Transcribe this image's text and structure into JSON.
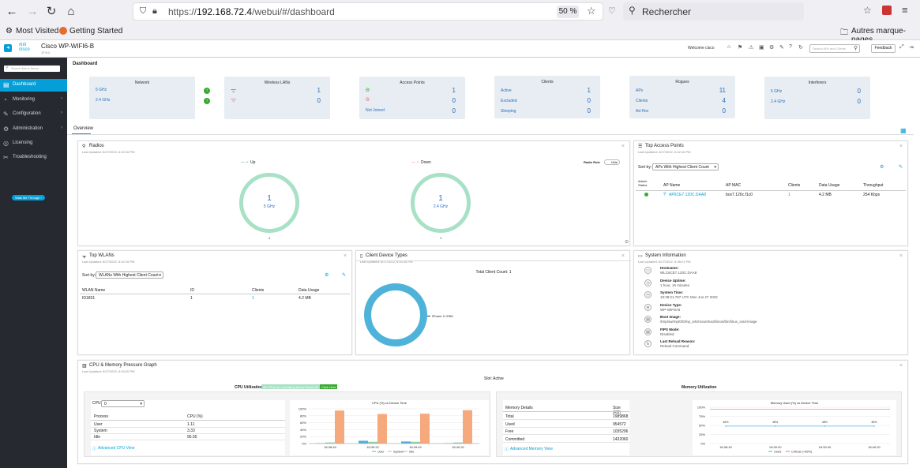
{
  "browser": {
    "url_prefix": "https://",
    "url_host": "192.168.72.4",
    "url_path": "/webui/#/dashboard",
    "zoom": "50 %",
    "search_placeholder": "Rechercher",
    "bookmarks": [
      "Most Visited",
      "Getting Started"
    ],
    "other_bookmarks": "Autres marque-pages"
  },
  "header": {
    "product": "Cisco WP-WIFI6-B",
    "version": "17.9.1",
    "welcome": "Welcome cisco",
    "search_placeholder": "Search APs and Clients",
    "feedback": "Feedback"
  },
  "sidebar": {
    "search_placeholder": "Search Menu Items",
    "items": [
      {
        "label": "Dashboard",
        "icon": "dashboard-icon"
      },
      {
        "label": "Monitoring",
        "icon": "monitoring-icon"
      },
      {
        "label": "Configuration",
        "icon": "wrench-icon"
      },
      {
        "label": "Administration",
        "icon": "gear-icon"
      },
      {
        "label": "Licensing",
        "icon": "license-icon"
      },
      {
        "label": "Troubleshooting",
        "icon": "tools-icon"
      }
    ],
    "walkme": "Walk Me Through ›"
  },
  "page": {
    "title": "Dashboard",
    "tab": "Overview"
  },
  "tiles": [
    {
      "title": "Network",
      "rows": [
        {
          "label": "5 GHz",
          "value": ""
        },
        {
          "label": "2.4 GHz",
          "value": ""
        }
      ]
    },
    {
      "title": "Wireless LANs",
      "rows": [
        {
          "label": "",
          "value": "1"
        },
        {
          "label": "",
          "value": "0"
        }
      ]
    },
    {
      "title": "Access Points",
      "rows": [
        {
          "label": "",
          "value": "1"
        },
        {
          "label": "",
          "value": "0"
        },
        {
          "label": "Not Joined",
          "value": "0"
        }
      ]
    },
    {
      "title": "Clients",
      "rows": [
        {
          "label": "Active",
          "value": "1"
        },
        {
          "label": "Excluded",
          "value": "0"
        },
        {
          "label": "Sleeping",
          "value": "0"
        }
      ]
    },
    {
      "title": "Rogues",
      "rows": [
        {
          "label": "APs",
          "value": "11"
        },
        {
          "label": "Clients",
          "value": "4"
        },
        {
          "label": "Ad Hoc",
          "value": "0"
        }
      ]
    },
    {
      "title": "Interferers",
      "rows": [
        {
          "label": "5 GHz",
          "value": "0"
        },
        {
          "label": "2.4 GHz",
          "value": "0"
        }
      ]
    }
  ],
  "radios": {
    "title": "Radios",
    "updated": "Last Updated: 6/27/2022, 6:42:16 PM",
    "legend_up": "Up",
    "legend_down": "Down",
    "radio_role_label": "Radio Role",
    "radio_role_toggle": "Hide",
    "rings": [
      {
        "count": "1",
        "band": "5 GHz",
        "axis": "1"
      },
      {
        "count": "1",
        "band": "2.4 GHz",
        "axis": "1"
      }
    ]
  },
  "top_aps": {
    "title": "Top Access Points",
    "updated": "Last Updated: 6/27/2022, 6:42:16 PM",
    "sort_label": "Sort by:",
    "sort_value": "APs With Highest Client Count",
    "headers": [
      "Admin Status",
      "AP Name",
      "AP MAC",
      "Clients",
      "Data Usage",
      "Throughput"
    ],
    "rows": [
      {
        "ap_name": "AP6CE7.120C.DAA8",
        "ap_mac": "bce7.120c.f1c0",
        "clients": "1",
        "data_usage": "4.2 MB",
        "throughput": "254 Kbps"
      }
    ]
  },
  "top_wlans": {
    "title": "Top WLANs",
    "updated": "Last Updated: 6/27/2022, 6:42:16 PM",
    "sort_label": "Sort by:",
    "sort_value": "WLANs With Highest Client Count",
    "headers": [
      "WLAN Name",
      "ID",
      "Clients",
      "Data Usage"
    ],
    "rows": [
      {
        "name": "ID1831",
        "id": "1",
        "clients": "1",
        "data_usage": "4.2 MB"
      }
    ]
  },
  "client_types": {
    "title": "Client Device Types",
    "updated": "Last Updated: 6/27/2022, 6:40:16 PM",
    "total": "Total Client Count: 1",
    "slice_label": "iPhone X GSM"
  },
  "sysinfo": {
    "title": "System Information",
    "updated": "Last Updated: 6/27/2022, 6:38:21 PM",
    "items": [
      {
        "label": "Hostname:",
        "value": "WLC6CE7.120C.DAA8"
      },
      {
        "label": "Device Uptime:",
        "value": "1 hour, 16 minutes"
      },
      {
        "label": "System Time:",
        "value": "18:38:21.797 UTC Mon Jun 27 2022"
      },
      {
        "label": "Device Type:",
        "value": "WP-WIFI6-B"
      },
      {
        "label": "Boot Image:",
        "value": "/tmp/sw/mp/0/0/mp_wlc/mount/usr/binos/bin/linux_iosd-image"
      },
      {
        "label": "FIPS Mode:",
        "value": "Disabled"
      },
      {
        "label": "Last Reload Reason:",
        "value": "Reload Command"
      }
    ]
  },
  "cpumem": {
    "title": "CPU & Memory Pressure Graph",
    "updated": "Last Updated: 6/27/2022, 6:40:20 PM",
    "slot": "Slot: Active",
    "cpu_title": "CPU Utilization",
    "cpu_badge": "All CPUs are operating below threshold",
    "cpu_badge2": "Click Here",
    "cpu_label": "CPU:",
    "cpu_value": "0",
    "cpu_headers": [
      "Process",
      "CPU (%)"
    ],
    "cpu_rows": [
      {
        "p": "User",
        "v": "1.11"
      },
      {
        "p": "System",
        "v": "3.33"
      },
      {
        "p": "Idle",
        "v": "95.55"
      }
    ],
    "cpu_link": "Advanced CPU View",
    "cpu_chart_title": "CPU (%) vs Device Time",
    "mem_title": "Memory Utilization",
    "mem_headers": [
      "Memory Details",
      "Size (KB)"
    ],
    "mem_rows": [
      {
        "d": "Total",
        "v": "1989868"
      },
      {
        "d": "Used",
        "v": "954572"
      },
      {
        "d": "Free",
        "v": "1035296"
      },
      {
        "d": "Committed",
        "v": "1432060"
      }
    ],
    "mem_link": "Advanced Memory View",
    "mem_chart_title": "Memory Used (%) vs Device Time"
  },
  "chart_data": [
    {
      "type": "bar",
      "title": "CPU (%) vs Device Time",
      "categories": [
        "18:38:49",
        "18:39:20",
        "18:39:49",
        "18:40:20"
      ],
      "ylim": [
        0,
        100
      ],
      "yticks": [
        "0%",
        "20%",
        "40%",
        "60%",
        "80%",
        "100%"
      ],
      "series": [
        {
          "name": "User",
          "values": [
            1,
            8,
            6,
            1
          ]
        },
        {
          "name": "System",
          "values": [
            3,
            5,
            5,
            3
          ]
        },
        {
          "name": "Idle",
          "values": [
            95,
            85,
            86,
            96
          ]
        }
      ]
    },
    {
      "type": "line",
      "title": "Memory Used (%) vs Device Time",
      "categories": [
        "18:38:49",
        "18:39:20",
        "18:39:49",
        "18:40:20"
      ],
      "ylim": [
        0,
        100
      ],
      "yticks": [
        "0%",
        "25%",
        "50%",
        "75%",
        "100%"
      ],
      "series": [
        {
          "name": "Used",
          "values": [
            48,
            48,
            48,
            48
          ],
          "labels": [
            "48%",
            "48%",
            "48%",
            "48%"
          ]
        },
        {
          "name": "Critical (>95%)",
          "values": [
            95,
            95,
            95,
            95
          ]
        }
      ]
    }
  ],
  "colors": {
    "accent": "#049fd9",
    "ring": "#a8e1c6",
    "user": "#4fb3d9",
    "system": "#8fd0a8",
    "idle": "#f5a97d",
    "critical": "#e9747a",
    "green": "#3aaa35"
  }
}
